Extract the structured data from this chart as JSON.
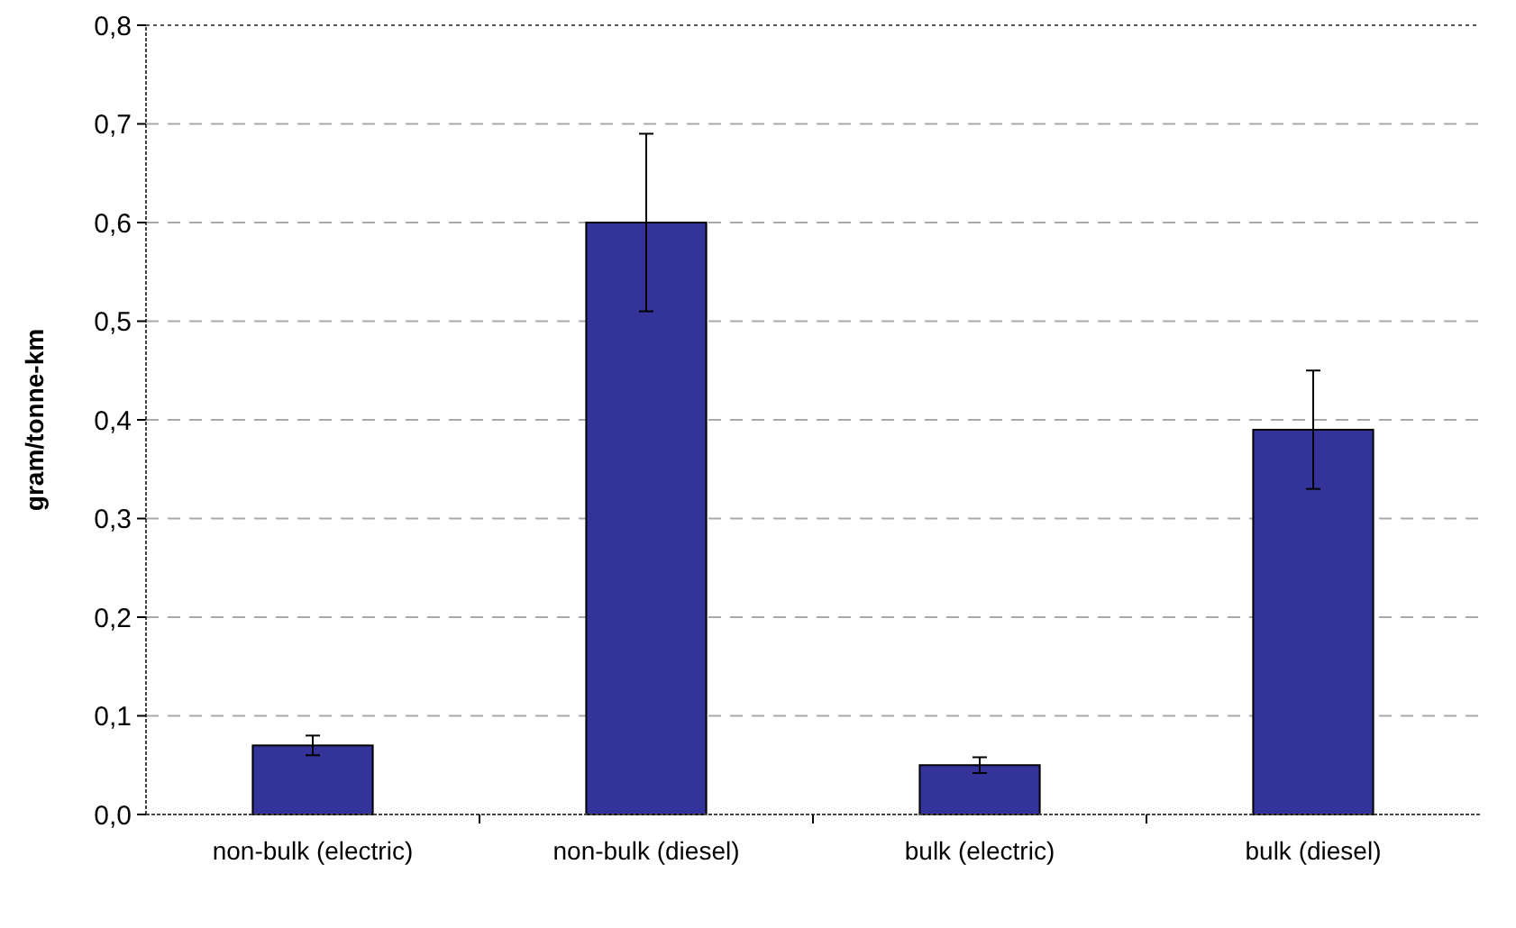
{
  "chart_data": {
    "type": "bar",
    "ylabel": "gram/tonne-km",
    "categories": [
      "non-bulk (electric)",
      "non-bulk (diesel)",
      "bulk (electric)",
      "bulk (diesel)"
    ],
    "values": [
      0.07,
      0.6,
      0.05,
      0.39
    ],
    "errors": [
      0.01,
      0.09,
      0.008,
      0.06
    ],
    "color": "#333399",
    "ylim": [
      0,
      0.8
    ],
    "yticks": [
      {
        "value": 0,
        "label": "0,0"
      },
      {
        "value": 0.1,
        "label": "0,1"
      },
      {
        "value": 0.2,
        "label": "0,2"
      },
      {
        "value": 0.3,
        "label": "0,3"
      },
      {
        "value": 0.4,
        "label": "0,4"
      },
      {
        "value": 0.5,
        "label": "0,5"
      },
      {
        "value": 0.6,
        "label": "0,6"
      },
      {
        "value": 0.7,
        "label": "0,7"
      },
      {
        "value": 0.8,
        "label": "0,8"
      }
    ],
    "grid": "y"
  }
}
